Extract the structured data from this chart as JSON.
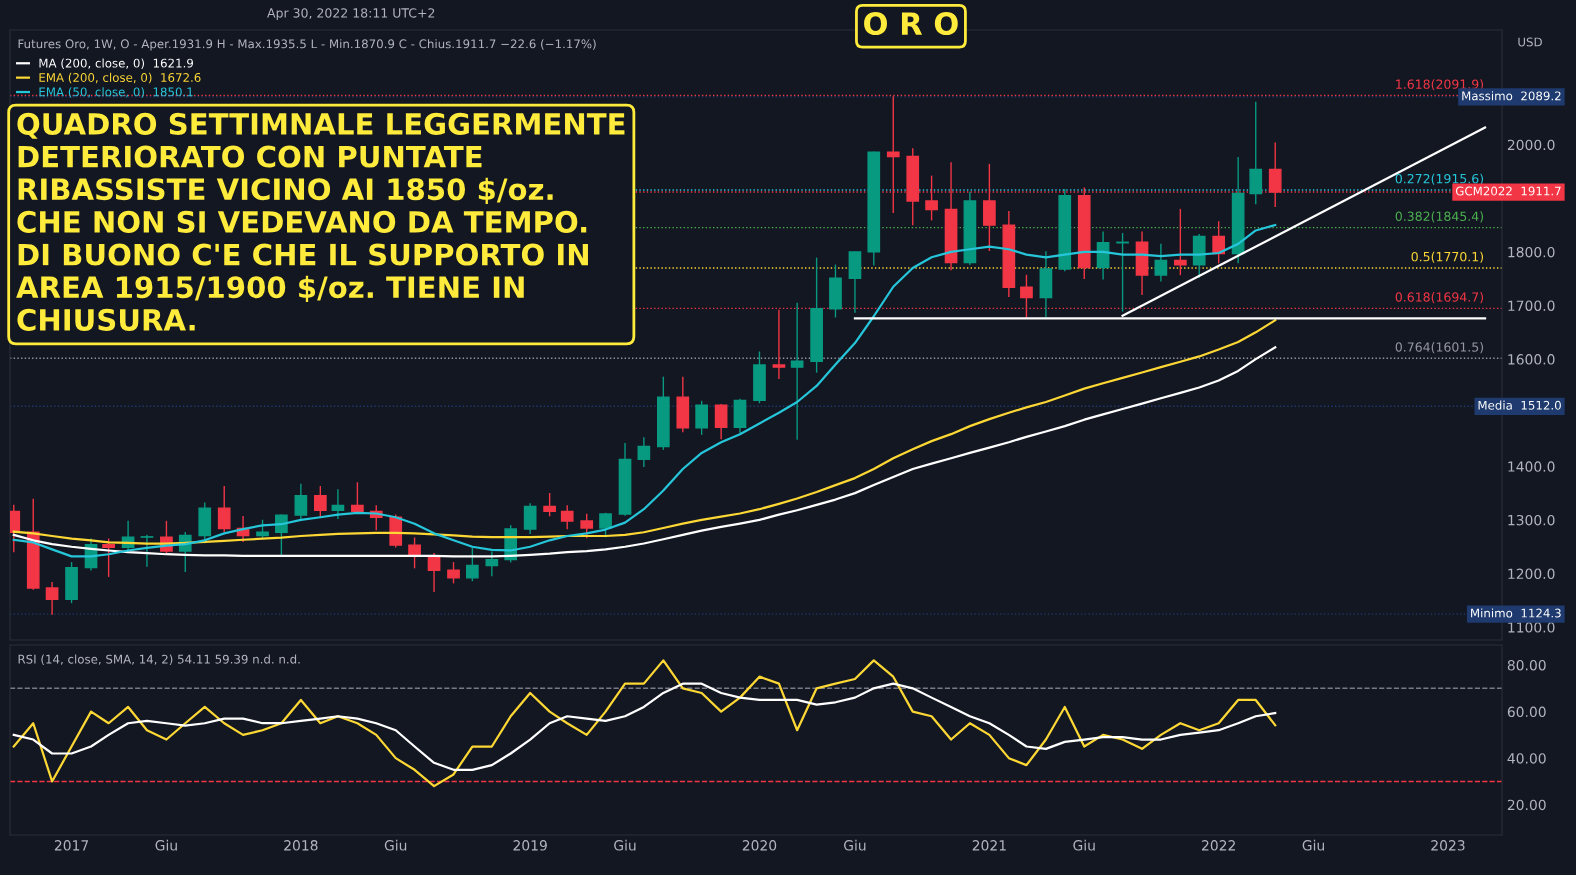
{
  "chart_data": [
    {
      "type": "candlestick",
      "title": "O R O",
      "annotations": [
        "Apr 30, 2022 18:11 UTC+2",
        "Futures Oro, 1W, O - Aper.1931.9 H - Max.1935.5 L - Min.1870.9 C - Chius.1911.7 −22.6 (−1.17%)",
        "QUADRO SETTIMNALE LEGGERMENTE\nDETERIORATO CON PUNTATE\nRIBASSISTE VICINO AI 1850 $/oz.\nCHE NON SI VEDEVANO DA TEMPO.\nDI BUONO C'E CHE IL SUPPORTO IN\nAREA 1915/1900 $/oz. TIENE IN\nCHIUSURA.",
        "USD"
      ],
      "x": [
        "2016-10",
        "2016-11",
        "2016-12",
        "2017-01",
        "2017-02",
        "2017-03",
        "2017-04",
        "2017-05",
        "2017-06",
        "2017-07",
        "2017-08",
        "2017-09",
        "2017-10",
        "2017-11",
        "2017-12",
        "2018-01",
        "2018-02",
        "2018-03",
        "2018-04",
        "2018-05",
        "2018-06",
        "2018-07",
        "2018-08",
        "2018-09",
        "2018-10",
        "2018-11",
        "2018-12",
        "2019-01",
        "2019-02",
        "2019-03",
        "2019-04",
        "2019-05",
        "2019-06",
        "2019-07",
        "2019-08",
        "2019-09",
        "2019-10",
        "2019-11",
        "2019-12",
        "2020-01",
        "2020-02",
        "2020-03",
        "2020-04",
        "2020-05",
        "2020-06",
        "2020-07",
        "2020-08",
        "2020-09",
        "2020-10",
        "2020-11",
        "2020-12",
        "2021-01",
        "2021-02",
        "2021-03",
        "2021-04",
        "2021-05",
        "2021-06",
        "2021-07",
        "2021-08",
        "2021-09",
        "2021-10",
        "2021-11",
        "2021-12",
        "2022-01",
        "2022-02",
        "2022-03",
        "2022-04"
      ],
      "ohlc": [
        [
          1316,
          1327,
          1241,
          1277
        ],
        [
          1277,
          1338,
          1171,
          1173
        ],
        [
          1173,
          1183,
          1124.3,
          1152
        ],
        [
          1152,
          1220,
          1146,
          1211
        ],
        [
          1211,
          1264,
          1207,
          1254
        ],
        [
          1254,
          1264,
          1195,
          1249
        ],
        [
          1249,
          1297,
          1243,
          1268
        ],
        [
          1268,
          1271,
          1214,
          1268
        ],
        [
          1268,
          1297,
          1237,
          1242
        ],
        [
          1242,
          1276,
          1204,
          1271
        ],
        [
          1271,
          1331,
          1258,
          1322
        ],
        [
          1322,
          1362,
          1279,
          1284
        ],
        [
          1284,
          1306,
          1260,
          1271
        ],
        [
          1271,
          1299,
          1265,
          1277
        ],
        [
          1277,
          1309,
          1236,
          1309
        ],
        [
          1309,
          1366,
          1303,
          1345
        ],
        [
          1345,
          1362,
          1307,
          1318
        ],
        [
          1318,
          1356,
          1303,
          1327
        ],
        [
          1327,
          1369,
          1314,
          1316
        ],
        [
          1316,
          1326,
          1282,
          1305
        ],
        [
          1305,
          1309,
          1250,
          1253
        ],
        [
          1253,
          1266,
          1211,
          1233
        ],
        [
          1233,
          1237,
          1167,
          1206
        ],
        [
          1206,
          1220,
          1183,
          1192
        ],
        [
          1192,
          1247,
          1187,
          1215
        ],
        [
          1215,
          1240,
          1196,
          1226
        ],
        [
          1226,
          1289,
          1222,
          1283
        ],
        [
          1283,
          1330,
          1275,
          1325
        ],
        [
          1325,
          1349,
          1308,
          1316
        ],
        [
          1316,
          1326,
          1284,
          1298
        ],
        [
          1298,
          1310,
          1267,
          1285
        ],
        [
          1285,
          1312,
          1269,
          1311
        ],
        [
          1311,
          1442,
          1309,
          1413
        ],
        [
          1413,
          1453,
          1400,
          1437
        ],
        [
          1437,
          1566,
          1432,
          1529
        ],
        [
          1529,
          1566,
          1465,
          1472
        ],
        [
          1472,
          1521,
          1460,
          1514
        ],
        [
          1514,
          1515,
          1452,
          1473
        ],
        [
          1473,
          1525,
          1463,
          1523
        ],
        [
          1523,
          1613,
          1519,
          1589
        ],
        [
          1589,
          1691,
          1564,
          1585
        ],
        [
          1585,
          1704,
          1451,
          1596
        ],
        [
          1596,
          1788,
          1576,
          1694
        ],
        [
          1694,
          1775,
          1679,
          1751
        ],
        [
          1751,
          1800,
          1688,
          1800
        ],
        [
          1800,
          1986,
          1776,
          1986
        ],
        [
          1986,
          2089.2,
          1874,
          1978
        ],
        [
          1978,
          1992,
          1851,
          1895
        ],
        [
          1895,
          1941,
          1860,
          1879
        ],
        [
          1879,
          1966,
          1767,
          1780
        ],
        [
          1780,
          1911,
          1777,
          1895
        ],
        [
          1895,
          1963,
          1803,
          1850
        ],
        [
          1850,
          1875,
          1717,
          1734
        ],
        [
          1734,
          1756,
          1677,
          1715
        ],
        [
          1715,
          1800,
          1680,
          1768
        ],
        [
          1768,
          1916,
          1765,
          1905
        ],
        [
          1905,
          1919,
          1751,
          1771
        ],
        [
          1771,
          1837,
          1750,
          1817
        ],
        [
          1817,
          1834,
          1690,
          1818
        ],
        [
          1818,
          1837,
          1721,
          1757
        ],
        [
          1757,
          1814,
          1746,
          1784
        ],
        [
          1784,
          1879,
          1758,
          1776
        ],
        [
          1776,
          1832,
          1753,
          1829
        ],
        [
          1829,
          1856,
          1780,
          1797
        ],
        [
          1797,
          1976,
          1780,
          1909
        ],
        [
          1909,
          2079,
          1890,
          1954
        ],
        [
          1954,
          2003,
          1885,
          1911.7
        ]
      ],
      "series": [
        {
          "type": "line",
          "name": "MA (200, close, 0)  1621.9",
          "color": "#ffffff",
          "values": [
            1272,
            1262,
            1255,
            1250,
            1246,
            1243,
            1240,
            1238,
            1236,
            1235,
            1234,
            1234,
            1233,
            1233,
            1233,
            1233,
            1233,
            1233,
            1233,
            1233,
            1233,
            1233,
            1233,
            1232,
            1232,
            1232,
            1233,
            1235,
            1237,
            1240,
            1242,
            1245,
            1250,
            1256,
            1264,
            1272,
            1280,
            1287,
            1293,
            1300,
            1310,
            1318,
            1328,
            1338,
            1350,
            1365,
            1380,
            1395,
            1405,
            1415,
            1425,
            1435,
            1445,
            1455,
            1465,
            1475,
            1487,
            1497,
            1507,
            1517,
            1527,
            1537,
            1547,
            1560,
            1578,
            1600,
            1621.9
          ]
        },
        {
          "type": "line",
          "name": "EMA (200, close, 0)  1672.6",
          "color": "#fdd835",
          "values": [
            1278,
            1275,
            1270,
            1265,
            1262,
            1258,
            1257,
            1256,
            1256,
            1257,
            1259,
            1261,
            1263,
            1265,
            1267,
            1270,
            1272,
            1274,
            1275,
            1276,
            1276,
            1275,
            1273,
            1271,
            1269,
            1268,
            1268,
            1268,
            1269,
            1270,
            1270,
            1270,
            1272,
            1277,
            1285,
            1293,
            1300,
            1306,
            1312,
            1320,
            1330,
            1340,
            1352,
            1365,
            1378,
            1395,
            1415,
            1432,
            1447,
            1460,
            1475,
            1488,
            1500,
            1510,
            1520,
            1532,
            1545,
            1555,
            1565,
            1575,
            1585,
            1595,
            1605,
            1618,
            1632,
            1650,
            1672.6
          ]
        },
        {
          "type": "line",
          "name": "EMA (50, close, 0)  1850.1",
          "color": "#26c6da",
          "values": [
            1263,
            1258,
            1245,
            1232,
            1232,
            1236,
            1243,
            1248,
            1252,
            1255,
            1262,
            1275,
            1283,
            1290,
            1292,
            1300,
            1305,
            1310,
            1313,
            1312,
            1305,
            1293,
            1275,
            1262,
            1250,
            1244,
            1243,
            1250,
            1262,
            1270,
            1275,
            1282,
            1295,
            1320,
            1355,
            1395,
            1425,
            1445,
            1460,
            1480,
            1500,
            1520,
            1550,
            1590,
            1630,
            1680,
            1735,
            1770,
            1790,
            1800,
            1805,
            1810,
            1805,
            1795,
            1790,
            1795,
            1800,
            1800,
            1795,
            1795,
            1792,
            1795,
            1795,
            1798,
            1815,
            1840,
            1850.1
          ]
        },
        {
          "type": "line",
          "color": "#ffffff",
          "x": [
            "2020-06",
            "2023-03"
          ],
          "values": [
            1676,
            1676
          ]
        },
        {
          "type": "line",
          "color": "#ffffff",
          "x": [
            "2021-08",
            "2023-03"
          ],
          "values": [
            1681,
            2032
          ]
        }
      ],
      "ref_lines": [
        {
          "axis": "y",
          "value": 2091.9,
          "label": "1.618(2091.9)",
          "color": "#f23645",
          "line_style": "dotted"
        },
        {
          "axis": "y",
          "value": 1915.6,
          "label": "0.272(1915.6)",
          "color": "#26c6da",
          "line_style": "dotted"
        },
        {
          "axis": "y",
          "value": 1845.4,
          "label": "0.382(1845.4)",
          "color": "#4caf50",
          "line_style": "dotted"
        },
        {
          "axis": "y",
          "value": 1770.1,
          "label": "0.5(1770.1)",
          "color": "#fdd835",
          "line_style": "dotted"
        },
        {
          "axis": "y",
          "value": 1694.7,
          "label": "0.618(1694.7)",
          "color": "#f23645",
          "line_style": "dotted"
        },
        {
          "axis": "y",
          "value": 1601.5,
          "label": "0.764(1601.5)",
          "color": "#9598a1",
          "line_style": "dotted"
        },
        {
          "axis": "y",
          "value": 2089.2,
          "label": "Massimo  2089.2",
          "color": "#1e3a6e",
          "line_style": "dotted"
        },
        {
          "axis": "y",
          "value": 1911.7,
          "label": "GCM2022  1911.7",
          "color": "#f23645",
          "line_style": "dotted"
        },
        {
          "axis": "y",
          "value": 1512.0,
          "label": "Media  1512.0",
          "color": "#1e3a6e",
          "line_style": "dotted"
        },
        {
          "axis": "y",
          "value": 1124.3,
          "label": "Minimo  1124.3",
          "color": "#1e3a6e",
          "line_style": "dotted"
        }
      ],
      "xlim": [
        "2016-09-25",
        "2023-03-28"
      ],
      "ylim": [
        1076,
        2214
      ],
      "yticks": [
        {
          "value": 1100,
          "label": "1100.0"
        },
        {
          "value": 1200,
          "label": "1200.0"
        },
        {
          "value": 1300,
          "label": "1300.0"
        },
        {
          "value": 1400,
          "label": "1400.0"
        },
        {
          "value": 1600,
          "label": "1600.0"
        },
        {
          "value": 1700,
          "label": "1700.0"
        },
        {
          "value": 1800,
          "label": "1800.0"
        },
        {
          "value": 2000,
          "label": "2000.0"
        }
      ],
      "tick_labels": "y",
      "legend": "top left"
    },
    {
      "type": "line",
      "annotations": [
        "RSI (14, close, SMA, 14, 2) 54.11 59.39 n.d. n.d."
      ],
      "x": [
        "2016-10",
        "2016-11",
        "2016-12",
        "2017-01",
        "2017-02",
        "2017-03",
        "2017-04",
        "2017-05",
        "2017-06",
        "2017-07",
        "2017-08",
        "2017-09",
        "2017-10",
        "2017-11",
        "2017-12",
        "2018-01",
        "2018-02",
        "2018-03",
        "2018-04",
        "2018-05",
        "2018-06",
        "2018-07",
        "2018-08",
        "2018-09",
        "2018-10",
        "2018-11",
        "2018-12",
        "2019-01",
        "2019-02",
        "2019-03",
        "2019-04",
        "2019-05",
        "2019-06",
        "2019-07",
        "2019-08",
        "2019-09",
        "2019-10",
        "2019-11",
        "2019-12",
        "2020-01",
        "2020-02",
        "2020-03",
        "2020-04",
        "2020-05",
        "2020-06",
        "2020-07",
        "2020-08",
        "2020-09",
        "2020-10",
        "2020-11",
        "2020-12",
        "2021-01",
        "2021-02",
        "2021-03",
        "2021-04",
        "2021-05",
        "2021-06",
        "2021-07",
        "2021-08",
        "2021-09",
        "2021-10",
        "2021-11",
        "2021-12",
        "2022-01",
        "2022-02",
        "2022-03",
        "2022-04"
      ],
      "series": [
        {
          "color": "#fdd835",
          "values": [
            45,
            55,
            30,
            45,
            60,
            55,
            62,
            52,
            48,
            55,
            62,
            55,
            50,
            52,
            55,
            65,
            55,
            58,
            55,
            50,
            40,
            35,
            28,
            33,
            45,
            45,
            58,
            68,
            60,
            55,
            50,
            60,
            72,
            72,
            82,
            70,
            68,
            60,
            66,
            75,
            72,
            52,
            70,
            72,
            74,
            82,
            75,
            60,
            58,
            48,
            55,
            50,
            40,
            37,
            48,
            62,
            45,
            50,
            48,
            44,
            50,
            55,
            52,
            55,
            65,
            65,
            54.11
          ]
        },
        {
          "color": "#ffffff",
          "values": [
            50,
            48,
            42,
            42,
            45,
            50,
            55,
            56,
            55,
            54,
            55,
            57,
            57,
            55,
            55,
            56,
            57,
            58,
            57,
            55,
            52,
            45,
            38,
            35,
            35,
            37,
            42,
            48,
            55,
            58,
            57,
            56,
            58,
            62,
            68,
            72,
            72,
            68,
            66,
            65,
            65,
            65,
            63,
            64,
            66,
            70,
            72,
            70,
            66,
            62,
            58,
            55,
            50,
            45,
            44,
            47,
            48,
            49,
            49,
            48,
            48,
            50,
            51,
            52,
            55,
            58,
            59.39
          ]
        }
      ],
      "ref_lines": [
        {
          "axis": "y",
          "value": 70,
          "color": "#787b86",
          "line_style": "dashed"
        },
        {
          "axis": "y",
          "value": 30,
          "color": "#f23645",
          "line_style": "dashed"
        }
      ],
      "xlim": [
        "2016-09-25",
        "2023-03-28"
      ],
      "xticks": [
        {
          "value": "2017-01",
          "label": "2017"
        },
        {
          "value": "2017-06",
          "label": "Giu"
        },
        {
          "value": "2018-01",
          "label": "2018"
        },
        {
          "value": "2018-06",
          "label": "Giu"
        },
        {
          "value": "2019-01",
          "label": "2019"
        },
        {
          "value": "2019-06",
          "label": "Giu"
        },
        {
          "value": "2020-01",
          "label": "2020"
        },
        {
          "value": "2020-06",
          "label": "Giu"
        },
        {
          "value": "2021-01",
          "label": "2021"
        },
        {
          "value": "2021-06",
          "label": "Giu"
        },
        {
          "value": "2022-01",
          "label": "2022"
        },
        {
          "value": "2022-06",
          "label": "Giu"
        },
        {
          "value": "2023-01",
          "label": "2023"
        }
      ],
      "ylim": [
        7,
        88.6
      ],
      "yticks": [
        {
          "value": 20,
          "label": "20.00"
        },
        {
          "value": 40,
          "label": "40.00"
        },
        {
          "value": 60,
          "label": "60.00"
        },
        {
          "value": 80,
          "label": "80.00"
        }
      ]
    }
  ]
}
